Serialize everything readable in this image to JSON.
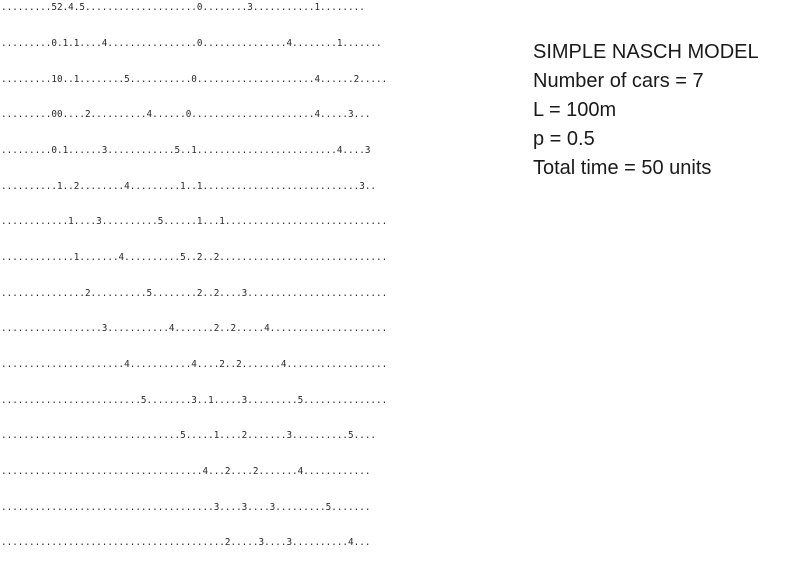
{
  "simulation_rows": [
    ".........52.4.5....................0........3...........1........",
    ".........0.1.1....4................0...............4........1.......",
    ".........10..1........5...........0.....................4......2.....",
    ".........00....2..........4......0......................4.....3...",
    ".........0.1......3............5..1.........................4....3",
    "..........1..2........4.........1..1............................3..",
    "............1....3..........5......1...1.............................",
    ".............1.......4..........5..2..2..............................",
    "...............2..........5........2..2....3.........................",
    "..................3...........4.......2..2.....4.....................",
    "......................4...........4....2..2.......4..................",
    ".........................5........3..1.....3.........5...............",
    "................................5.....1....2.......3..........5....",
    "....................................4...2....2.......4............",
    "......................................3....3....3.........5.......",
    "........................................2.....3....3..........4..."
  ],
  "info": {
    "title": "SIMPLE NASCH MODEL",
    "cars": "Number of cars = 7",
    "length": "L = 100m",
    "probability": "p = 0.5",
    "time": "Total time = 50 units"
  }
}
